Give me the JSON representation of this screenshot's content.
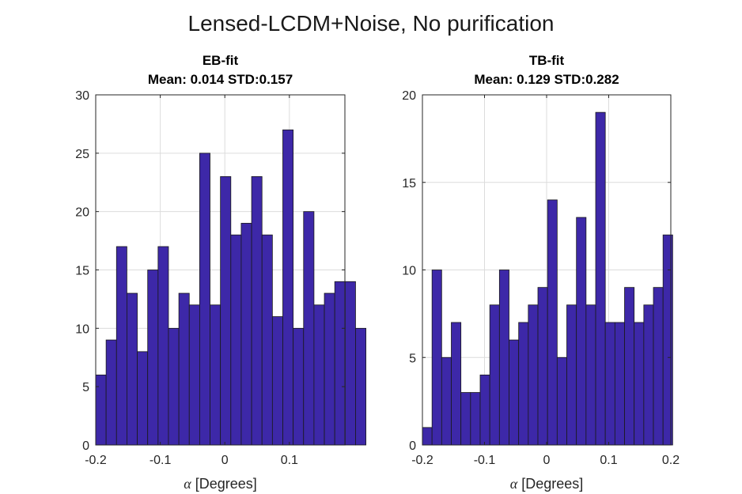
{
  "figure": {
    "title": "Lensed-LCDM+Noise, No purification"
  },
  "chart_data": [
    {
      "type": "bar",
      "title_lines": [
        "EB-fit",
        "Mean: 0.014 STD:0.157"
      ],
      "xlabel_symbol": "α",
      "xlabel_text": " [Degrees]",
      "xlim": [
        -0.2,
        0.186
      ],
      "ylim": [
        0,
        30
      ],
      "xticks": [
        -0.2,
        -0.1,
        0,
        0.1
      ],
      "xtick_labels": [
        "-0.2",
        "-0.1",
        "0",
        "0.1"
      ],
      "yticks": [
        0,
        5,
        10,
        15,
        20,
        25,
        30
      ],
      "ytick_labels": [
        "0",
        "5",
        "10",
        "15",
        "20",
        "25",
        "30"
      ],
      "bin_start": -0.2,
      "bin_width": 0.0161,
      "values": [
        6,
        9,
        17,
        13,
        8,
        15,
        17,
        10,
        13,
        12,
        25,
        12,
        23,
        18,
        19,
        23,
        18,
        11,
        27,
        10,
        20,
        12,
        13,
        14,
        14,
        10
      ],
      "grid": true,
      "bar_color": "#3d28a8"
    },
    {
      "type": "bar",
      "title_lines": [
        "TB-fit",
        "Mean: 0.129 STD:0.282"
      ],
      "xlabel_symbol": "α",
      "xlabel_text": " [Degrees]",
      "xlim": [
        -0.2,
        0.2
      ],
      "ylim": [
        0,
        20
      ],
      "xticks": [
        -0.2,
        -0.1,
        0,
        0.1,
        0.2
      ],
      "xtick_labels": [
        "-0.2",
        "-0.1",
        "0",
        "0.1",
        "0.2"
      ],
      "yticks": [
        0,
        5,
        10,
        15,
        20
      ],
      "ytick_labels": [
        "0",
        "5",
        "10",
        "15",
        "20"
      ],
      "bin_start": -0.2,
      "bin_width": 0.0155,
      "values": [
        1,
        10,
        5,
        7,
        3,
        3,
        4,
        8,
        10,
        6,
        7,
        8,
        9,
        14,
        5,
        8,
        13,
        8,
        19,
        7,
        7,
        9,
        7,
        8,
        9,
        12
      ],
      "grid": true,
      "bar_color": "#3d28a8"
    }
  ]
}
